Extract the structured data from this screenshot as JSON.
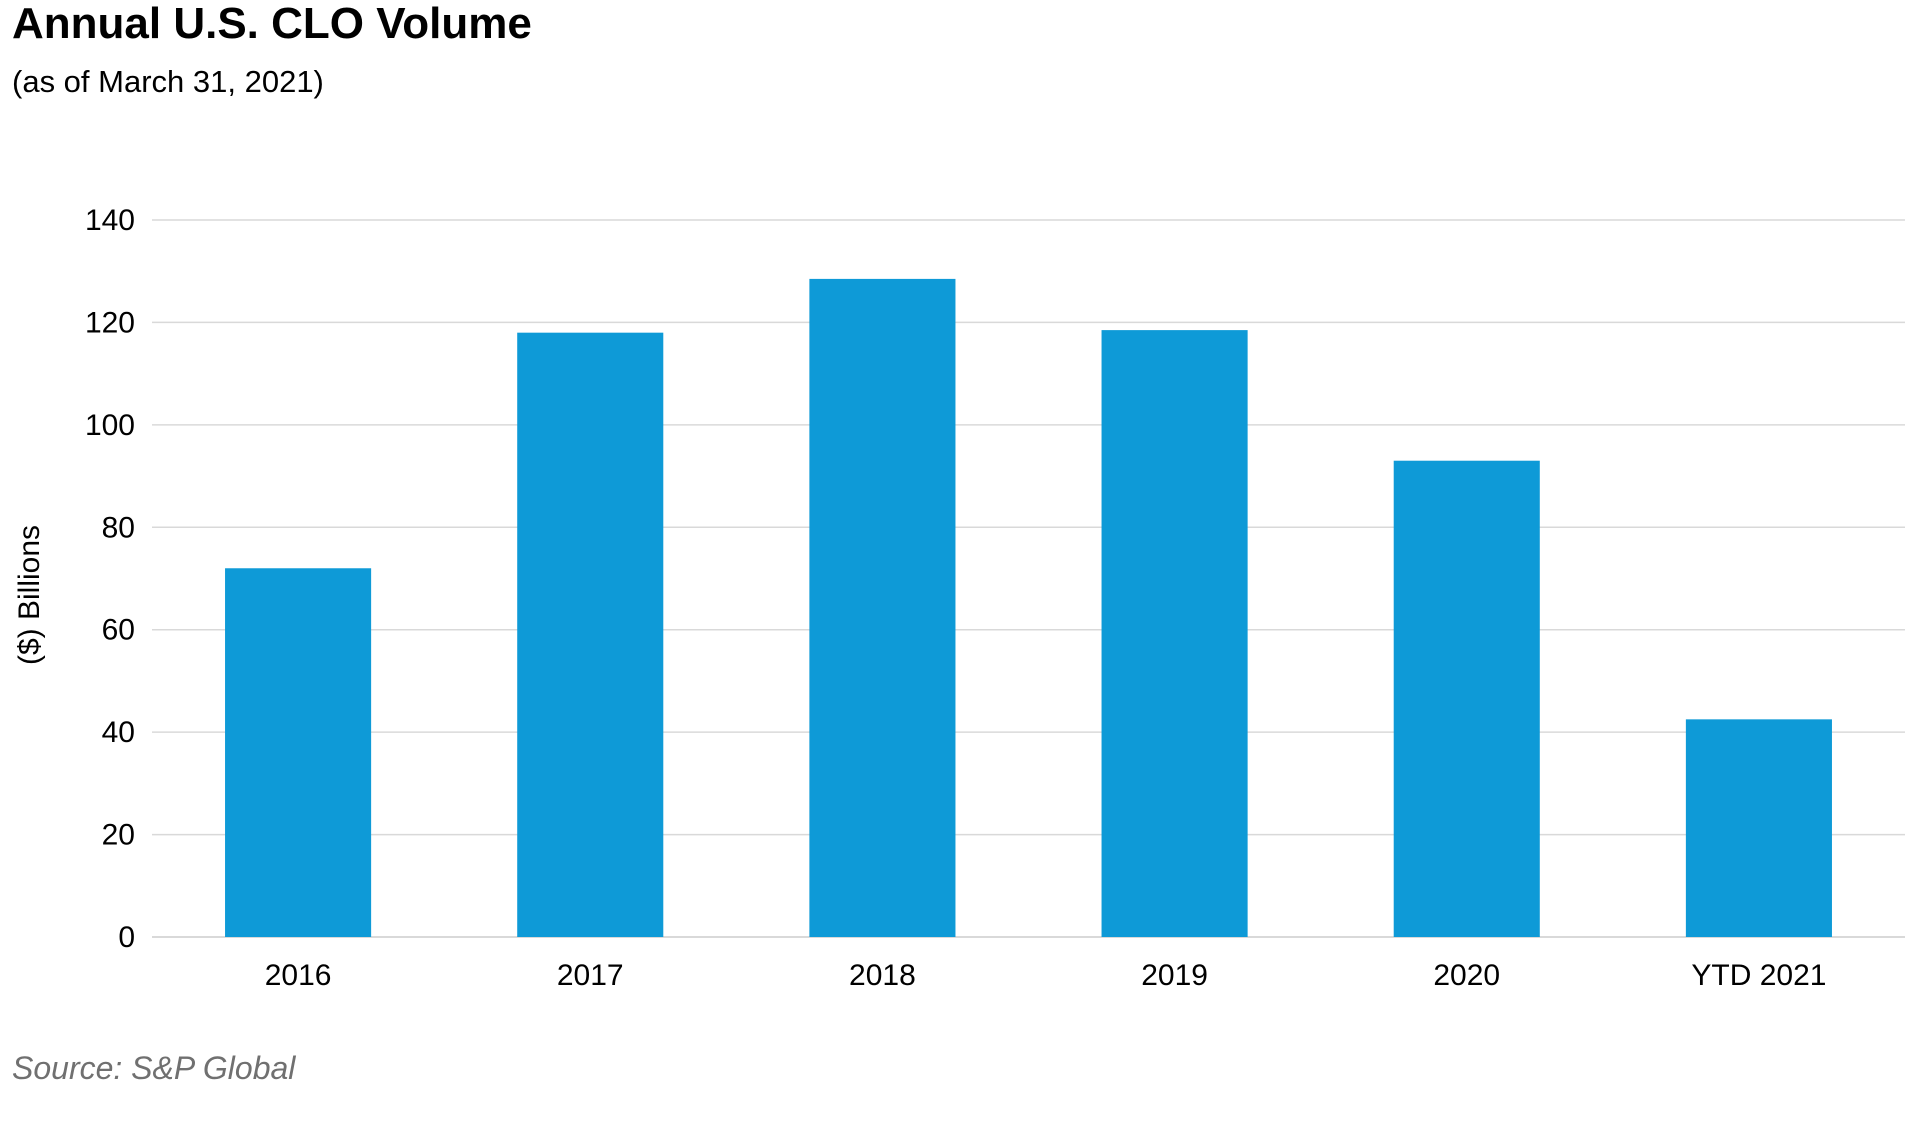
{
  "chart_data": {
    "type": "bar",
    "title": "Annual U.S. CLO Volume",
    "subtitle": "(as of March 31, 2021)",
    "categories": [
      "2016",
      "2017",
      "2018",
      "2019",
      "2020",
      "YTD 2021"
    ],
    "values": [
      72,
      118,
      128.5,
      118.5,
      93,
      42.5
    ],
    "xlabel": "",
    "ylabel": "($) Billions",
    "ylim": [
      0,
      140
    ],
    "yticks": [
      0,
      20,
      40,
      60,
      80,
      100,
      120,
      140
    ],
    "grid": true,
    "legend": "none",
    "bar_color": "#0e9ad7",
    "grid_color": "#d9d9d9",
    "source": "Source: S&P Global"
  }
}
